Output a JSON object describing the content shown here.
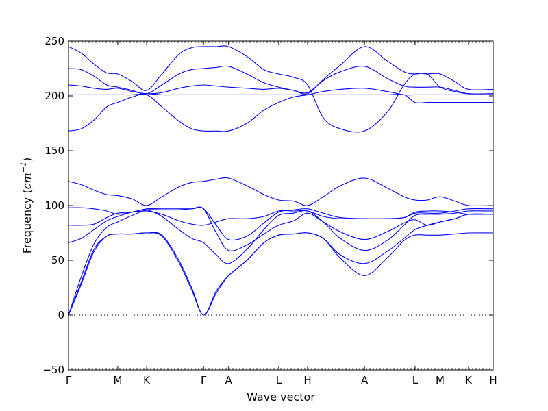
{
  "chart_data": {
    "type": "line",
    "title": "",
    "xlabel": "Wave vector",
    "ylabel": "Frequency (cm⁻¹)",
    "ylabel_prefix": "Frequency (",
    "ylabel_unit": "cm",
    "ylabel_sup": "−1",
    "ylabel_suffix": ")",
    "ylim": [
      -50,
      250
    ],
    "yticks": [
      -50,
      0,
      50,
      100,
      150,
      200,
      250
    ],
    "ytick_labels": [
      "−50",
      "0",
      "50",
      "100",
      "150",
      "200",
      "250"
    ],
    "grid": false,
    "legend": "none",
    "zero_line": "dotted",
    "line_color": "#0000ff",
    "path_segments": [
      {
        "from": "Γ",
        "to": "M",
        "x": [
          0.0,
          0.116
        ]
      },
      {
        "from": "M",
        "to": "K",
        "x": [
          0.116,
          0.184
        ]
      },
      {
        "from": "K",
        "to": "Γ",
        "x": [
          0.184,
          0.318
        ]
      },
      {
        "from": "Γ",
        "to": "A",
        "x": [
          0.318,
          0.377
        ]
      },
      {
        "from": "A",
        "to": "L",
        "x": [
          0.377,
          0.495
        ]
      },
      {
        "from": "L",
        "to": "H",
        "x": [
          0.495,
          0.563
        ]
      },
      {
        "from": "H",
        "to": "A",
        "x": [
          0.563,
          0.697
        ]
      },
      {
        "from": "A",
        "to": "L",
        "x": [
          0.697,
          0.816
        ]
      },
      {
        "from": "L",
        "to": "M",
        "x": [
          0.816,
          0.875
        ]
      },
      {
        "from": "M",
        "to": "K",
        "x": [
          0.875,
          0.942
        ]
      },
      {
        "from": "K",
        "to": "H",
        "x": [
          0.942,
          1.0
        ]
      }
    ],
    "xticks": [
      {
        "label": "Γ",
        "x": 0.0
      },
      {
        "label": "M",
        "x": 0.116
      },
      {
        "label": "K",
        "x": 0.184
      },
      {
        "label": "Γ",
        "x": 0.318
      },
      {
        "label": "A",
        "x": 0.377
      },
      {
        "label": "L",
        "x": 0.495
      },
      {
        "label": "H",
        "x": 0.563
      },
      {
        "label": "A",
        "x": 0.697
      },
      {
        "label": "L",
        "x": 0.816
      },
      {
        "label": "M",
        "x": 0.875
      },
      {
        "label": "K",
        "x": 0.942
      },
      {
        "label": "H",
        "x": 1.0
      }
    ],
    "series": [
      {
        "x": [
          0.0,
          0.03,
          0.06,
          0.09,
          0.116,
          0.15,
          0.184,
          0.22,
          0.26,
          0.29,
          0.318,
          0.348,
          0.377,
          0.42,
          0.46,
          0.495,
          0.53,
          0.563,
          0.6,
          0.64,
          0.697,
          0.75,
          0.79,
          0.816,
          0.845,
          0.875,
          0.91,
          0.942,
          1.0
        ],
        "y": [
          245,
          239,
          229,
          221,
          220,
          213,
          205,
          220,
          238,
          244,
          245,
          245,
          245,
          236,
          224,
          220,
          217,
          210,
          180,
          170,
          168,
          185,
          210,
          220,
          220,
          220,
          213,
          206,
          206
        ]
      },
      {
        "x": [
          0.0,
          0.03,
          0.06,
          0.09,
          0.116,
          0.15,
          0.184,
          0.22,
          0.26,
          0.29,
          0.318,
          0.348,
          0.377,
          0.42,
          0.46,
          0.495,
          0.53,
          0.563,
          0.6,
          0.64,
          0.697,
          0.75,
          0.79,
          0.816,
          0.845,
          0.875,
          0.91,
          0.942,
          1.0
        ],
        "y": [
          225,
          224,
          218,
          210,
          208,
          205,
          202,
          210,
          220,
          224,
          225,
          226,
          227,
          220,
          212,
          208,
          205,
          202,
          215,
          228,
          245,
          232,
          222,
          220,
          220,
          208,
          204,
          202,
          202
        ]
      },
      {
        "x": [
          0.0,
          0.03,
          0.06,
          0.09,
          0.116,
          0.15,
          0.184,
          0.22,
          0.26,
          0.29,
          0.318,
          0.348,
          0.377,
          0.42,
          0.46,
          0.495,
          0.53,
          0.563,
          0.6,
          0.64,
          0.697,
          0.75,
          0.79,
          0.816,
          0.845,
          0.875,
          0.91,
          0.942,
          1.0
        ],
        "y": [
          210,
          209,
          207,
          206,
          207,
          204,
          202,
          203,
          207,
          209,
          210,
          209,
          208,
          207,
          206,
          207,
          205,
          203,
          214,
          222,
          227,
          216,
          209,
          208,
          208,
          208,
          205,
          202,
          202
        ]
      },
      {
        "x": [
          0.0,
          0.03,
          0.06,
          0.09,
          0.116,
          0.15,
          0.184,
          0.22,
          0.26,
          0.29,
          0.318,
          0.348,
          0.377,
          0.42,
          0.46,
          0.495,
          0.53,
          0.563,
          0.6,
          0.64,
          0.697,
          0.75,
          0.79,
          0.816,
          0.845,
          0.875,
          0.91,
          0.942,
          1.0
        ],
        "y": [
          168,
          170,
          178,
          190,
          194,
          199,
          201,
          190,
          177,
          170,
          168,
          168,
          168,
          175,
          187,
          194,
          199,
          201,
          204,
          206,
          207,
          204,
          201,
          201,
          201,
          201,
          201,
          201,
          201
        ]
      },
      {
        "x": [
          0.0,
          0.03,
          0.06,
          0.09,
          0.116,
          0.15,
          0.184,
          0.22,
          0.26,
          0.29,
          0.318,
          0.348,
          0.377,
          0.42,
          0.46,
          0.495,
          0.53,
          0.563,
          0.6,
          0.64,
          0.697,
          0.75,
          0.79,
          0.816,
          0.845,
          0.875,
          0.91,
          0.942,
          1.0
        ],
        "y": [
          201,
          201,
          201,
          201,
          201,
          201,
          202,
          201,
          201,
          201,
          201,
          201,
          201,
          201,
          201,
          201,
          201,
          201,
          201,
          201,
          201,
          201,
          201,
          194,
          194,
          194,
          194,
          194,
          194
        ]
      },
      {
        "x": [
          0.0,
          0.03,
          0.06,
          0.09,
          0.116,
          0.15,
          0.184,
          0.22,
          0.26,
          0.29,
          0.318,
          0.348,
          0.377,
          0.42,
          0.46,
          0.495,
          0.53,
          0.563,
          0.6,
          0.64,
          0.697,
          0.75,
          0.79,
          0.816,
          0.845,
          0.875,
          0.91,
          0.942,
          1.0
        ],
        "y": [
          122,
          119,
          114,
          110,
          109,
          106,
          100,
          108,
          117,
          121,
          122,
          124,
          125,
          118,
          110,
          105,
          104,
          100,
          108,
          118,
          125,
          116,
          108,
          105,
          105,
          108,
          104,
          100,
          100
        ]
      },
      {
        "x": [
          0.0,
          0.03,
          0.06,
          0.09,
          0.116,
          0.15,
          0.184,
          0.22,
          0.26,
          0.29,
          0.318,
          0.348,
          0.377,
          0.42,
          0.46,
          0.495,
          0.53,
          0.563,
          0.6,
          0.64,
          0.697,
          0.75,
          0.79,
          0.816,
          0.845,
          0.875,
          0.91,
          0.942,
          1.0
        ],
        "y": [
          98,
          98,
          97,
          95,
          92,
          94,
          97,
          97,
          97,
          97,
          97,
          82,
          69,
          72,
          84,
          94,
          96,
          97,
          93,
          89,
          88,
          88,
          89,
          94,
          95,
          95,
          94,
          92,
          92
        ]
      },
      {
        "x": [
          0.0,
          0.03,
          0.06,
          0.09,
          0.116,
          0.15,
          0.184,
          0.22,
          0.26,
          0.29,
          0.318,
          0.348,
          0.377,
          0.42,
          0.46,
          0.495,
          0.53,
          0.563,
          0.6,
          0.64,
          0.697,
          0.75,
          0.79,
          0.816,
          0.845,
          0.875,
          0.91,
          0.942,
          1.0
        ],
        "y": [
          82,
          82,
          83,
          89,
          93,
          94,
          95,
          92,
          86,
          83,
          82,
          85,
          88,
          88,
          90,
          95,
          95,
          95,
          90,
          88,
          88,
          88,
          89,
          93,
          93,
          93,
          95,
          97,
          97
        ]
      },
      {
        "x": [
          0.0,
          0.03,
          0.06,
          0.09,
          0.116,
          0.15,
          0.184,
          0.22,
          0.26,
          0.29,
          0.318,
          0.348,
          0.377,
          0.42,
          0.46,
          0.495,
          0.53,
          0.563,
          0.6,
          0.64,
          0.697,
          0.75,
          0.79,
          0.816,
          0.845,
          0.875,
          0.91,
          0.942,
          1.0
        ],
        "y": [
          66,
          70,
          78,
          86,
          90,
          94,
          96,
          90,
          78,
          70,
          66,
          55,
          47,
          60,
          78,
          91,
          93,
          95,
          85,
          70,
          59,
          68,
          82,
          91,
          92,
          92,
          93,
          95,
          95
        ]
      },
      {
        "x": [
          0.0,
          0.03,
          0.06,
          0.09,
          0.116,
          0.15,
          0.184,
          0.22,
          0.26,
          0.29,
          0.318,
          0.348,
          0.377,
          0.42,
          0.46,
          0.495,
          0.53,
          0.563,
          0.6,
          0.64,
          0.697,
          0.75,
          0.79,
          0.816,
          0.845,
          0.875,
          0.91,
          0.942,
          1.0
        ],
        "y": [
          0,
          35,
          65,
          80,
          85,
          91,
          96,
          96,
          96,
          97,
          97,
          75,
          59,
          64,
          74,
          82,
          86,
          93,
          85,
          76,
          69,
          76,
          84,
          87,
          82,
          85,
          88,
          92,
          92
        ]
      },
      {
        "x": [
          0.0,
          0.03,
          0.06,
          0.09,
          0.116,
          0.15,
          0.184,
          0.22,
          0.26,
          0.29,
          0.318,
          0.348,
          0.377,
          0.42,
          0.46,
          0.495,
          0.53,
          0.563,
          0.6,
          0.64,
          0.697,
          0.75,
          0.79,
          0.816,
          0.845,
          0.875,
          0.91,
          0.942,
          1.0
        ],
        "y": [
          0,
          30,
          60,
          72,
          74,
          74,
          75,
          73,
          50,
          25,
          0,
          22,
          36,
          50,
          66,
          73,
          74,
          75,
          70,
          55,
          47,
          58,
          70,
          78,
          82,
          85,
          88,
          92,
          92
        ]
      },
      {
        "x": [
          0.0,
          0.03,
          0.06,
          0.09,
          0.116,
          0.15,
          0.184,
          0.22,
          0.26,
          0.29,
          0.318,
          0.348,
          0.377,
          0.42,
          0.46,
          0.495,
          0.53,
          0.563,
          0.6,
          0.64,
          0.697,
          0.75,
          0.79,
          0.816,
          0.845,
          0.875,
          0.91,
          0.942,
          1.0
        ],
        "y": [
          0,
          28,
          58,
          72,
          74,
          74,
          75,
          72,
          48,
          23,
          0,
          20,
          36,
          50,
          66,
          73,
          74,
          75,
          70,
          52,
          36,
          52,
          68,
          73,
          73,
          73,
          74,
          75,
          75
        ]
      }
    ]
  }
}
